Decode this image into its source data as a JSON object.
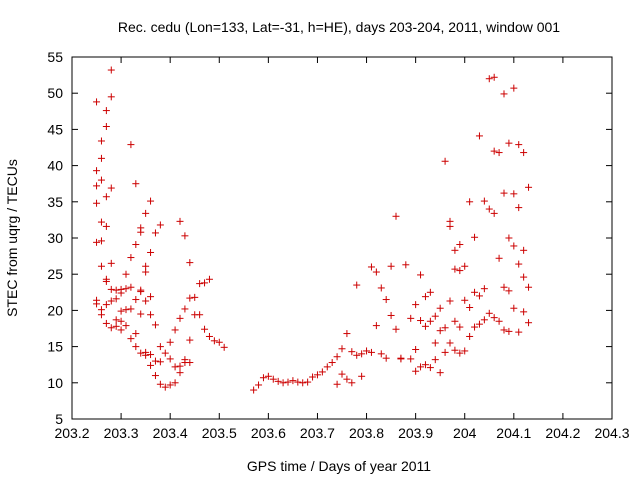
{
  "chart_data": {
    "type": "scatter",
    "title": "Rec. cedu (Lon=133, Lat=-31, h=HE), days 203-204, 2011, window 001",
    "xlabel": "GPS time / Days of year 2011",
    "ylabel": "STEC from uqrg / TECUs",
    "xlim": [
      203.2,
      204.3
    ],
    "ylim": [
      5,
      55
    ],
    "xticks": [
      203.2,
      203.3,
      203.4,
      203.5,
      203.6,
      203.7,
      203.8,
      203.9,
      204,
      204.1,
      204.2,
      204.3
    ],
    "xtick_labels": [
      "203.2",
      "203.3",
      "203.4",
      "203.5",
      "203.6",
      "203.7",
      "203.8",
      "203.9",
      "204",
      "204.1",
      "204.2",
      "204.3"
    ],
    "yticks": [
      5,
      10,
      15,
      20,
      25,
      30,
      35,
      40,
      45,
      50,
      55
    ],
    "ytick_labels": [
      "5",
      "10",
      "15",
      "20",
      "25",
      "30",
      "35",
      "40",
      "45",
      "50",
      "55"
    ],
    "grid": false,
    "marker": "+",
    "color": "#cc0000",
    "points": [
      [
        203.25,
        48.8
      ],
      [
        203.25,
        39.3
      ],
      [
        203.25,
        37.2
      ],
      [
        203.25,
        34.8
      ],
      [
        203.25,
        29.4
      ],
      [
        203.25,
        21.4
      ],
      [
        203.25,
        20.9
      ],
      [
        203.26,
        43.4
      ],
      [
        203.26,
        41.0
      ],
      [
        203.26,
        38.0
      ],
      [
        203.26,
        32.2
      ],
      [
        203.26,
        29.6
      ],
      [
        203.26,
        26.1
      ],
      [
        203.26,
        20.1
      ],
      [
        203.26,
        19.4
      ],
      [
        203.27,
        47.6
      ],
      [
        203.27,
        45.4
      ],
      [
        203.27,
        35.7
      ],
      [
        203.27,
        31.6
      ],
      [
        203.27,
        24.3
      ],
      [
        203.27,
        24.0
      ],
      [
        203.27,
        20.8
      ],
      [
        203.27,
        18.2
      ],
      [
        203.28,
        53.2
      ],
      [
        203.28,
        49.5
      ],
      [
        203.28,
        36.9
      ],
      [
        203.28,
        26.5
      ],
      [
        203.28,
        22.9
      ],
      [
        203.28,
        21.3
      ],
      [
        203.28,
        17.6
      ],
      [
        203.29,
        21.6
      ],
      [
        203.29,
        22.8
      ],
      [
        203.29,
        18.7
      ],
      [
        203.29,
        17.8
      ],
      [
        203.3,
        22.9
      ],
      [
        203.3,
        22.4
      ],
      [
        203.3,
        19.9
      ],
      [
        203.3,
        18.5
      ],
      [
        203.3,
        17.3
      ],
      [
        203.31,
        25.0
      ],
      [
        203.31,
        23.0
      ],
      [
        203.31,
        20.1
      ],
      [
        203.31,
        17.9
      ],
      [
        203.32,
        42.9
      ],
      [
        203.32,
        27.3
      ],
      [
        203.32,
        23.2
      ],
      [
        203.32,
        20.2
      ],
      [
        203.32,
        16.1
      ],
      [
        203.33,
        37.5
      ],
      [
        203.33,
        29.1
      ],
      [
        203.33,
        21.5
      ],
      [
        203.33,
        16.8
      ],
      [
        203.33,
        15.0
      ],
      [
        203.34,
        31.4
      ],
      [
        203.34,
        30.8
      ],
      [
        203.34,
        22.8
      ],
      [
        203.34,
        22.6
      ],
      [
        203.34,
        19.5
      ],
      [
        203.34,
        14.1
      ],
      [
        203.35,
        33.4
      ],
      [
        203.35,
        26.1
      ],
      [
        203.35,
        25.3
      ],
      [
        203.35,
        21.3
      ],
      [
        203.35,
        14.2
      ],
      [
        203.35,
        13.8
      ],
      [
        203.36,
        35.1
      ],
      [
        203.36,
        28.0
      ],
      [
        203.36,
        21.9
      ],
      [
        203.36,
        19.4
      ],
      [
        203.36,
        13.9
      ],
      [
        203.36,
        12.4
      ],
      [
        203.37,
        30.7
      ],
      [
        203.37,
        18.0
      ],
      [
        203.37,
        13.0
      ],
      [
        203.37,
        11.0
      ],
      [
        203.38,
        31.8
      ],
      [
        203.38,
        15.0
      ],
      [
        203.38,
        12.9
      ],
      [
        203.38,
        9.8
      ],
      [
        203.39,
        14.1
      ],
      [
        203.39,
        9.4
      ],
      [
        203.4,
        15.6
      ],
      [
        203.4,
        13.3
      ],
      [
        203.4,
        9.7
      ],
      [
        203.41,
        17.3
      ],
      [
        203.41,
        12.2
      ],
      [
        203.41,
        10.0
      ],
      [
        203.42,
        32.3
      ],
      [
        203.42,
        18.9
      ],
      [
        203.42,
        12.3
      ],
      [
        203.42,
        11.4
      ],
      [
        203.43,
        30.3
      ],
      [
        203.43,
        20.2
      ],
      [
        203.43,
        13.2
      ],
      [
        203.43,
        12.8
      ],
      [
        203.44,
        26.6
      ],
      [
        203.44,
        21.7
      ],
      [
        203.44,
        15.9
      ],
      [
        203.44,
        12.8
      ],
      [
        203.45,
        21.8
      ],
      [
        203.45,
        19.4
      ],
      [
        203.46,
        23.7
      ],
      [
        203.46,
        19.4
      ],
      [
        203.47,
        23.8
      ],
      [
        203.47,
        17.4
      ],
      [
        203.48,
        24.3
      ],
      [
        203.48,
        16.4
      ],
      [
        203.49,
        15.8
      ],
      [
        203.5,
        15.6
      ],
      [
        203.51,
        14.9
      ],
      [
        203.57,
        9.0
      ],
      [
        203.58,
        9.7
      ],
      [
        203.59,
        10.7
      ],
      [
        203.6,
        10.9
      ],
      [
        203.61,
        10.5
      ],
      [
        203.62,
        10.2
      ],
      [
        203.63,
        10.0
      ],
      [
        203.64,
        10.1
      ],
      [
        203.65,
        10.3
      ],
      [
        203.66,
        10.1
      ],
      [
        203.67,
        10.0
      ],
      [
        203.68,
        10.1
      ],
      [
        203.69,
        10.8
      ],
      [
        203.7,
        11.1
      ],
      [
        203.71,
        11.5
      ],
      [
        203.72,
        12.2
      ],
      [
        203.73,
        12.8
      ],
      [
        203.74,
        9.8
      ],
      [
        203.74,
        13.6
      ],
      [
        203.75,
        14.7
      ],
      [
        203.75,
        11.2
      ],
      [
        203.76,
        16.8
      ],
      [
        203.76,
        10.5
      ],
      [
        203.77,
        14.3
      ],
      [
        203.77,
        10.0
      ],
      [
        203.78,
        23.5
      ],
      [
        203.78,
        13.8
      ],
      [
        203.79,
        14.0
      ],
      [
        203.79,
        10.9
      ],
      [
        203.8,
        14.4
      ],
      [
        203.81,
        26.0
      ],
      [
        203.81,
        14.2
      ],
      [
        203.82,
        25.3
      ],
      [
        203.82,
        17.9
      ],
      [
        203.83,
        23.1
      ],
      [
        203.83,
        14.0
      ],
      [
        203.84,
        21.5
      ],
      [
        203.84,
        13.4
      ],
      [
        203.85,
        26.1
      ],
      [
        203.85,
        19.3
      ],
      [
        203.86,
        33.0
      ],
      [
        203.86,
        17.4
      ],
      [
        203.87,
        13.4
      ],
      [
        203.87,
        13.3
      ],
      [
        203.88,
        26.3
      ],
      [
        203.89,
        18.9
      ],
      [
        203.89,
        13.3
      ],
      [
        203.9,
        20.8
      ],
      [
        203.9,
        14.6
      ],
      [
        203.9,
        11.6
      ],
      [
        203.91,
        24.9
      ],
      [
        203.91,
        18.6
      ],
      [
        203.91,
        12.2
      ],
      [
        203.92,
        21.9
      ],
      [
        203.92,
        17.8
      ],
      [
        203.92,
        12.5
      ],
      [
        203.93,
        22.5
      ],
      [
        203.93,
        18.5
      ],
      [
        203.93,
        12.1
      ],
      [
        203.94,
        19.2
      ],
      [
        203.94,
        15.5
      ],
      [
        203.94,
        13.2
      ],
      [
        203.95,
        20.3
      ],
      [
        203.95,
        17.2
      ],
      [
        203.95,
        11.4
      ],
      [
        203.96,
        40.6
      ],
      [
        203.96,
        17.6
      ],
      [
        203.96,
        14.2
      ],
      [
        203.97,
        32.3
      ],
      [
        203.97,
        31.6
      ],
      [
        203.97,
        21.3
      ],
      [
        203.97,
        15.5
      ],
      [
        203.98,
        28.3
      ],
      [
        203.98,
        25.7
      ],
      [
        203.98,
        18.5
      ],
      [
        203.98,
        14.5
      ],
      [
        203.99,
        29.1
      ],
      [
        203.99,
        25.5
      ],
      [
        203.99,
        17.7
      ],
      [
        203.99,
        14.1
      ],
      [
        204.0,
        26.1
      ],
      [
        204.0,
        21.4
      ],
      [
        204.0,
        14.4
      ],
      [
        204.01,
        35.0
      ],
      [
        204.01,
        20.4
      ],
      [
        204.01,
        16.4
      ],
      [
        204.02,
        30.1
      ],
      [
        204.02,
        22.5
      ],
      [
        204.02,
        17.7
      ],
      [
        204.03,
        44.1
      ],
      [
        204.03,
        22.0
      ],
      [
        204.03,
        18.1
      ],
      [
        204.04,
        35.1
      ],
      [
        204.04,
        23.0
      ],
      [
        204.04,
        18.7
      ],
      [
        204.05,
        52.0
      ],
      [
        204.05,
        34.0
      ],
      [
        204.05,
        19.6
      ],
      [
        204.06,
        52.2
      ],
      [
        204.06,
        42.0
      ],
      [
        204.06,
        33.4
      ],
      [
        204.06,
        19.0
      ],
      [
        204.07,
        41.8
      ],
      [
        204.07,
        27.2
      ],
      [
        204.07,
        18.5
      ],
      [
        204.08,
        49.9
      ],
      [
        204.08,
        36.2
      ],
      [
        204.08,
        23.2
      ],
      [
        204.08,
        17.3
      ],
      [
        204.09,
        43.1
      ],
      [
        204.09,
        30.0
      ],
      [
        204.09,
        22.7
      ],
      [
        204.09,
        17.1
      ],
      [
        204.1,
        50.7
      ],
      [
        204.1,
        36.1
      ],
      [
        204.1,
        28.9
      ],
      [
        204.1,
        20.3
      ],
      [
        204.11,
        42.9
      ],
      [
        204.11,
        34.2
      ],
      [
        204.11,
        26.4
      ],
      [
        204.11,
        17.0
      ],
      [
        204.12,
        41.8
      ],
      [
        204.12,
        28.3
      ],
      [
        204.12,
        24.6
      ],
      [
        204.12,
        19.8
      ],
      [
        204.13,
        37.0
      ],
      [
        204.13,
        23.2
      ],
      [
        204.13,
        18.3
      ]
    ]
  }
}
